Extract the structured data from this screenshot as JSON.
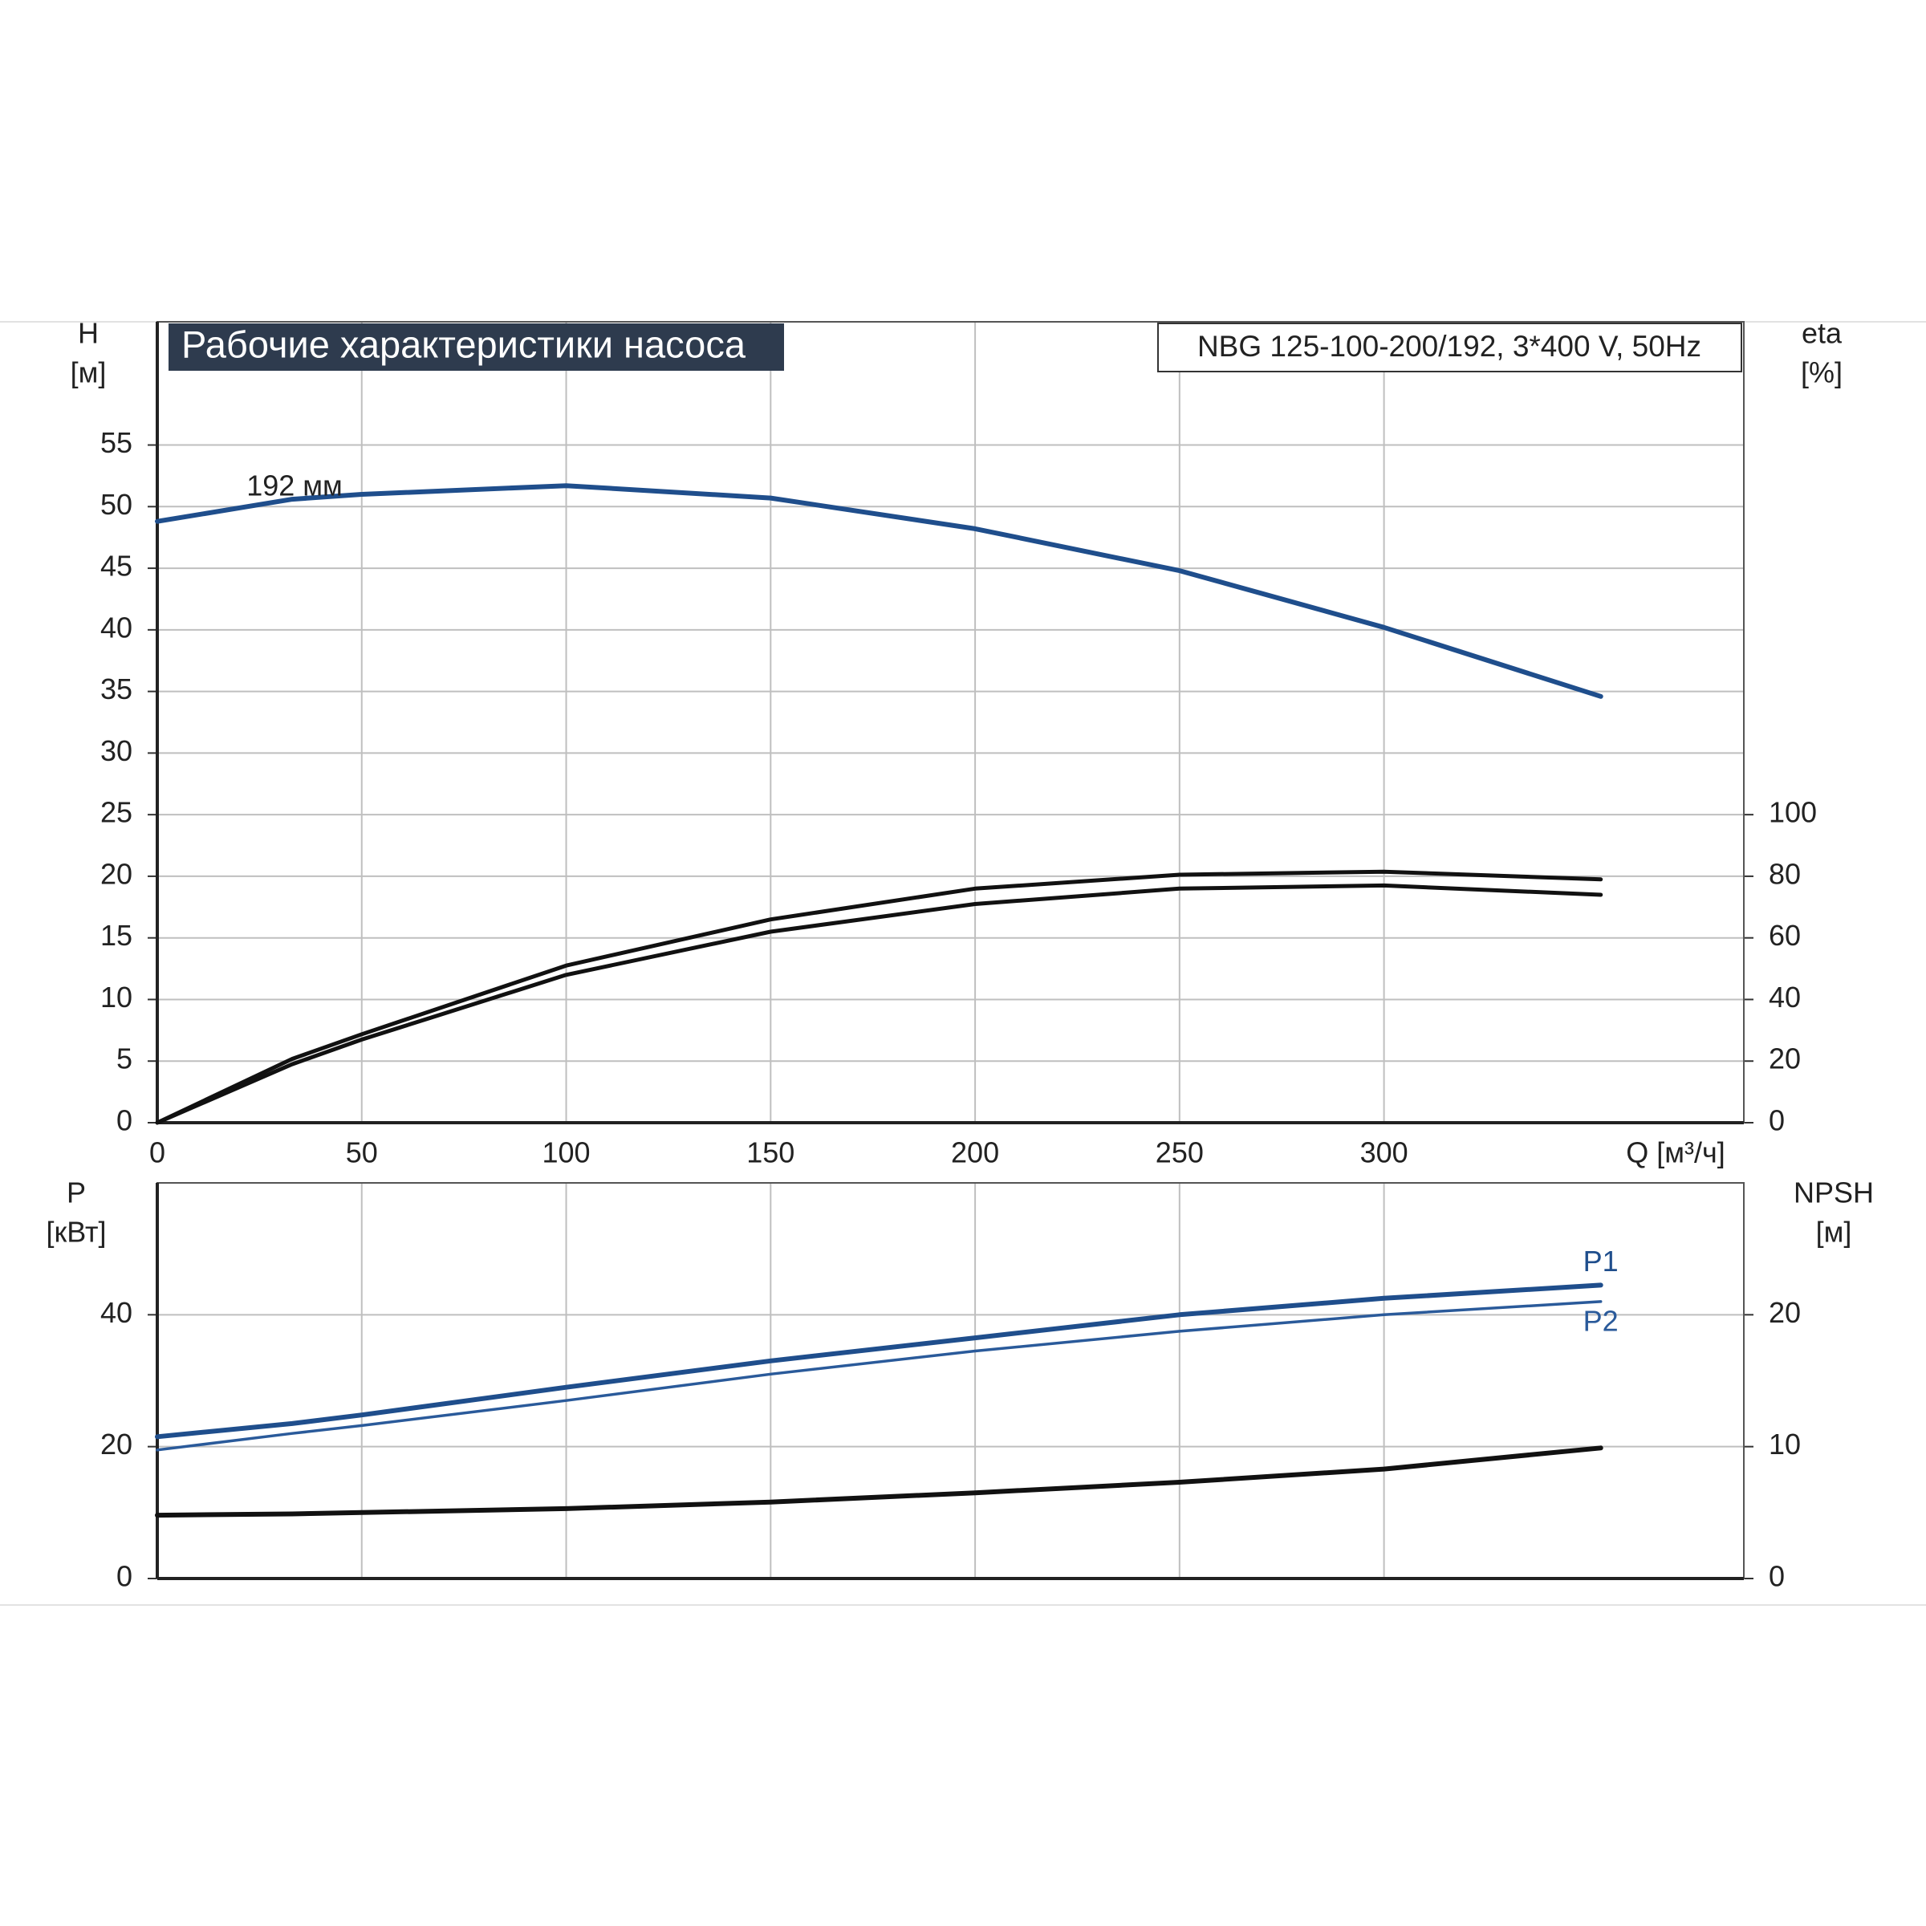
{
  "chart_data": [
    {
      "type": "line",
      "title": "Рабочие характеристики насоса",
      "subtitle": "NBG 125-100-200/192, 3*400 V, 50Hz",
      "annotations": [
        "192 мм"
      ],
      "ylabel": [
        "H",
        "[м]"
      ],
      "y2label": [
        "eta",
        "[%]"
      ],
      "xlabel": "Q [м³/ч]",
      "x": [
        0,
        33,
        50,
        100,
        150,
        200,
        250,
        300,
        353
      ],
      "xlim": [
        0,
        388
      ],
      "xticks": [
        0,
        50,
        100,
        150,
        200,
        250,
        300
      ],
      "ylim": [
        0,
        65
      ],
      "yticks": [
        0,
        5,
        10,
        15,
        20,
        25,
        30,
        35,
        40,
        45,
        50,
        55
      ],
      "y2lim": [
        0,
        260
      ],
      "y2ticks": [
        0,
        20,
        40,
        60,
        80,
        100
      ],
      "grid": true,
      "series": [
        {
          "color": "#1f4e8c",
          "values": [
            48.8,
            50.6,
            51.0,
            51.7,
            50.7,
            48.2,
            44.8,
            40.2,
            34.6
          ]
        },
        {
          "color": "#111111",
          "axis": "y2",
          "values": [
            0,
            20.7,
            28.7,
            51,
            66,
            76,
            80.5,
            81.5,
            79
          ]
        },
        {
          "color": "#111111",
          "axis": "y2",
          "values": [
            0,
            19,
            27,
            48,
            62,
            71,
            76,
            77,
            74
          ]
        }
      ]
    },
    {
      "type": "line",
      "ylabel": [
        "P",
        "[кВт]"
      ],
      "y2label": [
        "NPSH",
        "[м]"
      ],
      "x": [
        0,
        33,
        50,
        100,
        150,
        200,
        250,
        300,
        353
      ],
      "xlim": [
        0,
        388
      ],
      "xticks": [
        50,
        100,
        150,
        200,
        250,
        300
      ],
      "ylim": [
        0,
        60
      ],
      "yticks": [
        0,
        20,
        40
      ],
      "y2lim": [
        0,
        30
      ],
      "y2ticks": [
        0,
        10,
        20
      ],
      "grid": true,
      "series": [
        {
          "name": "P1",
          "color": "#1f4e8c",
          "values": [
            21.5,
            23.5,
            24.8,
            29,
            33,
            36.5,
            40,
            42.5,
            44.5
          ]
        },
        {
          "name": "P2",
          "color": "#2a5a9a",
          "values": [
            19.5,
            22,
            23.2,
            27,
            31,
            34.5,
            37.5,
            40,
            42
          ]
        },
        {
          "color": "#111111",
          "axis": "y2",
          "values": [
            4.8,
            4.9,
            5.0,
            5.3,
            5.8,
            6.5,
            7.3,
            8.3,
            9.9
          ]
        }
      ]
    }
  ]
}
